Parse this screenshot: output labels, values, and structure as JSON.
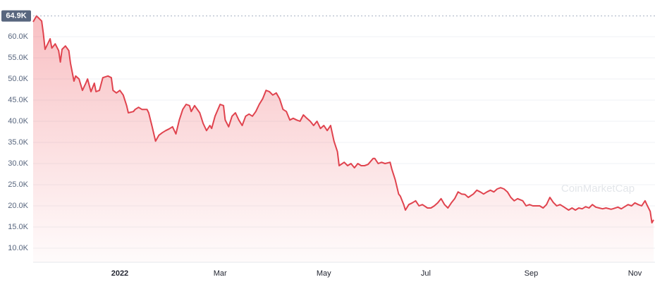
{
  "chart_data": {
    "type": "line",
    "series": [
      {
        "name": "Price",
        "color": "#e0434e",
        "values": [
          63500,
          64900,
          63700,
          60700,
          57000,
          59500,
          57300,
          58300,
          56700,
          54000,
          57000,
          57800,
          56700,
          53700,
          49500,
          50700,
          50000,
          47300,
          49000,
          50000,
          47000,
          49000,
          47000,
          47300,
          50300,
          50700,
          50300,
          47300,
          46700,
          47300,
          46200,
          43700,
          42000,
          42300,
          42800,
          43300,
          42800,
          42800,
          42000,
          38700,
          35300,
          36700,
          37300,
          37800,
          38200,
          38700,
          37000,
          40300,
          42800,
          44000,
          43700,
          42300,
          43700,
          42000,
          39500,
          37800,
          39000,
          38300,
          41200,
          44000,
          43700,
          40300,
          38700,
          41200,
          42000,
          40300,
          39000,
          41200,
          41700,
          41200,
          42300,
          44000,
          45300,
          47300,
          47000,
          46200,
          46700,
          45300,
          42800,
          42300,
          40300,
          40700,
          40300,
          40000,
          41500,
          40700,
          40000,
          39000,
          40000,
          38300,
          39000,
          37800,
          39000,
          35300,
          32800,
          29500,
          30300,
          29500,
          30000,
          29000,
          30000,
          29500,
          29500,
          29800,
          31200,
          31200,
          30000,
          30300,
          30000,
          30300,
          28700,
          26200,
          22800,
          22300,
          20300,
          19000,
          20300,
          20700,
          21200,
          20000,
          20300,
          19500,
          19500,
          20000,
          20700,
          21700,
          20300,
          19500,
          20700,
          21700,
          23300,
          22800,
          22700,
          22000,
          22800,
          23700,
          23300,
          22800,
          23300,
          23700,
          23300,
          24000,
          24300,
          24000,
          23300,
          22000,
          21200,
          21700,
          21200,
          20000,
          20300,
          20000,
          20000,
          20000,
          19500,
          20300,
          22000,
          20800,
          20000,
          20300,
          19800,
          19000,
          19500,
          19000,
          19500,
          19300,
          19800,
          19500,
          20300,
          19700,
          19500,
          19300,
          19500,
          19200,
          19300,
          19700,
          19300,
          19800,
          20300,
          20000,
          20700,
          20300,
          20000,
          21200,
          20300,
          18700,
          16000,
          16700
        ]
      }
    ],
    "x": [
      0,
      2,
      5,
      6,
      7,
      10,
      11,
      13,
      15,
      16,
      17,
      19,
      21,
      22,
      24,
      25,
      27,
      29,
      31,
      32,
      34,
      36,
      37,
      39,
      41,
      44,
      46,
      47,
      49,
      51,
      53,
      55,
      56,
      59,
      60,
      62,
      64,
      67,
      68,
      70,
      72,
      74,
      76,
      78,
      80,
      82,
      84,
      86,
      88,
      90,
      92,
      93,
      95,
      98,
      100,
      102,
      104,
      105,
      107,
      110,
      112,
      113,
      115,
      117,
      119,
      121,
      123,
      125,
      127,
      129,
      131,
      133,
      135,
      137,
      139,
      141,
      143,
      145,
      147,
      149,
      151,
      153,
      155,
      157,
      159,
      161,
      163,
      165,
      167,
      169,
      171,
      173,
      175,
      177,
      179,
      180,
      183,
      185,
      187,
      189,
      191,
      193,
      195,
      197,
      200,
      201,
      203,
      205,
      207,
      210,
      211,
      213,
      215,
      216,
      218,
      219,
      221,
      223,
      225,
      227,
      229,
      232,
      234,
      236,
      238,
      240,
      242,
      244,
      246,
      248,
      250,
      252,
      254,
      256,
      259,
      261,
      263,
      265,
      267,
      269,
      271,
      273,
      275,
      277,
      279,
      281,
      283,
      285,
      288,
      290,
      292,
      294,
      296,
      298,
      300,
      302,
      304,
      306,
      308,
      310,
      312,
      315,
      317,
      319,
      321,
      323,
      325,
      327,
      329,
      331,
      333,
      335,
      337,
      340,
      341,
      344,
      346,
      348,
      350,
      352,
      354,
      356,
      358,
      360,
      361,
      363,
      364,
      365
    ],
    "xlim": [
      0,
      365
    ],
    "xticks": [
      {
        "value": 51,
        "label": "2022"
      },
      {
        "value": 110,
        "label": "Mar"
      },
      {
        "value": 171,
        "label": "May"
      },
      {
        "value": 231,
        "label": "Jul"
      },
      {
        "value": 293,
        "label": "Sep"
      },
      {
        "value": 354,
        "label": "Nov"
      }
    ],
    "ylim": [
      7000,
      67000
    ],
    "yticks": [
      {
        "value": 10000,
        "label": "10.0K"
      },
      {
        "value": 15000,
        "label": "15.0K"
      },
      {
        "value": 20000,
        "label": "20.0K"
      },
      {
        "value": 25000,
        "label": "25.0K"
      },
      {
        "value": 30000,
        "label": "30.0K"
      },
      {
        "value": 35000,
        "label": "35.0K"
      },
      {
        "value": 40000,
        "label": "40.0K"
      },
      {
        "value": 45000,
        "label": "45.0K"
      },
      {
        "value": 50000,
        "label": "50.0K"
      },
      {
        "value": 55000,
        "label": "55.0K"
      },
      {
        "value": 60000,
        "label": "60.0K"
      }
    ],
    "annotations": [
      {
        "value": 64900,
        "label": "64.9K"
      }
    ],
    "watermark": "CoinMarketCap",
    "grid": true
  }
}
